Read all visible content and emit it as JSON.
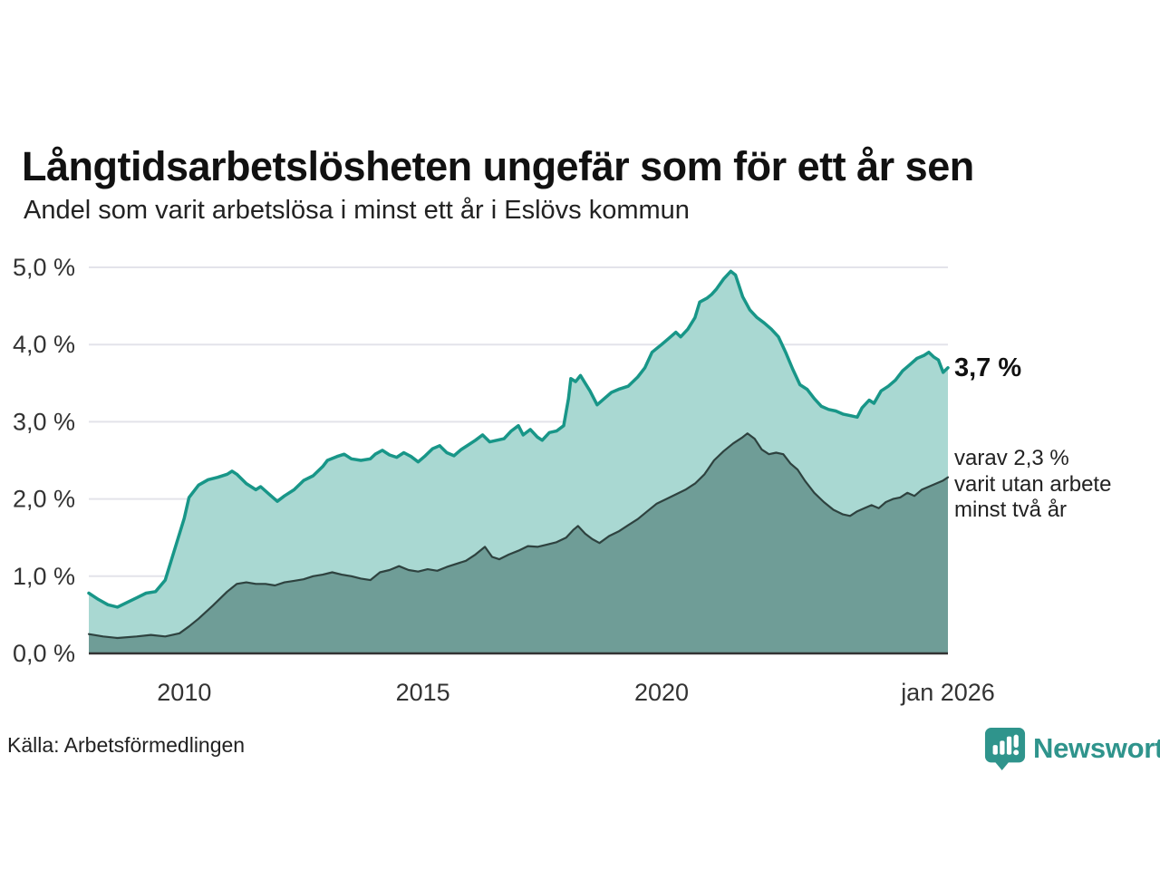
{
  "title": "Långtidsarbetslösheten ungefär som för ett år sen",
  "subtitle": "Andel som varit arbetslösa i minst ett år i Eslövs kommun",
  "source": "Källa: Arbetsförmedlingen",
  "branding": {
    "name": "Newsworthy",
    "icon": "bar-chart-speech-bubble-icon",
    "color": "#2f948c"
  },
  "annotations": {
    "latest_value": "3,7 %",
    "secondary_note": "varav 2,3 %\nvarit utan arbete\nminst två år"
  },
  "colors": {
    "accent_line": "#189688",
    "accent_fill": "#a9d8d2",
    "dark_line": "#2e423f",
    "dark_fill": "#6f9d97",
    "grid": "#e3e3ea",
    "axis": "#333333",
    "tick": "#333333",
    "text": "#111111",
    "brand": "#2f948c"
  },
  "chart_data": {
    "type": "area",
    "title": "Långtidsarbetslösheten ungefär som för ett år sen",
    "subtitle": "Andel som varit arbetslösa i minst ett år i Eslövs kommun",
    "xlabel": "",
    "ylabel": "",
    "xlim": [
      2008,
      2026
    ],
    "ylim": [
      0,
      5
    ],
    "grid": "horizontal",
    "legend": "none",
    "yticks": [
      {
        "value": 0,
        "label": "0,0 %"
      },
      {
        "value": 1,
        "label": "1,0 %"
      },
      {
        "value": 2,
        "label": "2,0 %"
      },
      {
        "value": 3,
        "label": "3,0 %"
      },
      {
        "value": 4,
        "label": "4,0 %"
      },
      {
        "value": 5,
        "label": "5,0 %"
      }
    ],
    "xticks": [
      {
        "value": 2010,
        "label": "2010"
      },
      {
        "value": 2015,
        "label": "2015"
      },
      {
        "value": 2020,
        "label": "2020"
      },
      {
        "value": 2026,
        "label": "jan 2026"
      }
    ],
    "series": [
      {
        "id": "minst-ett-ar",
        "name": "minst ett år",
        "end_value": 3.7,
        "end_label": "3,7 %",
        "color": "#189688",
        "fill": "#a9d8d2",
        "stroke_width": 3.5,
        "points": [
          [
            2008.0,
            0.78
          ],
          [
            2008.2,
            0.7
          ],
          [
            2008.4,
            0.63
          ],
          [
            2008.6,
            0.6
          ],
          [
            2008.8,
            0.66
          ],
          [
            2009.0,
            0.72
          ],
          [
            2009.2,
            0.78
          ],
          [
            2009.4,
            0.8
          ],
          [
            2009.6,
            0.95
          ],
          [
            2009.8,
            1.35
          ],
          [
            2010.0,
            1.75
          ],
          [
            2010.1,
            2.02
          ],
          [
            2010.3,
            2.18
          ],
          [
            2010.5,
            2.25
          ],
          [
            2010.7,
            2.28
          ],
          [
            2010.9,
            2.32
          ],
          [
            2011.0,
            2.36
          ],
          [
            2011.1,
            2.32
          ],
          [
            2011.3,
            2.2
          ],
          [
            2011.5,
            2.12
          ],
          [
            2011.6,
            2.16
          ],
          [
            2011.8,
            2.05
          ],
          [
            2011.95,
            1.97
          ],
          [
            2012.1,
            2.04
          ],
          [
            2012.3,
            2.12
          ],
          [
            2012.5,
            2.24
          ],
          [
            2012.7,
            2.3
          ],
          [
            2012.9,
            2.42
          ],
          [
            2013.0,
            2.5
          ],
          [
            2013.2,
            2.55
          ],
          [
            2013.35,
            2.58
          ],
          [
            2013.5,
            2.52
          ],
          [
            2013.7,
            2.5
          ],
          [
            2013.9,
            2.52
          ],
          [
            2014.0,
            2.58
          ],
          [
            2014.15,
            2.63
          ],
          [
            2014.3,
            2.57
          ],
          [
            2014.45,
            2.54
          ],
          [
            2014.6,
            2.6
          ],
          [
            2014.75,
            2.55
          ],
          [
            2014.9,
            2.48
          ],
          [
            2015.05,
            2.56
          ],
          [
            2015.2,
            2.65
          ],
          [
            2015.35,
            2.69
          ],
          [
            2015.5,
            2.6
          ],
          [
            2015.65,
            2.56
          ],
          [
            2015.8,
            2.64
          ],
          [
            2015.95,
            2.7
          ],
          [
            2016.1,
            2.76
          ],
          [
            2016.25,
            2.83
          ],
          [
            2016.4,
            2.74
          ],
          [
            2016.55,
            2.76
          ],
          [
            2016.7,
            2.78
          ],
          [
            2016.85,
            2.88
          ],
          [
            2017.0,
            2.95
          ],
          [
            2017.1,
            2.83
          ],
          [
            2017.25,
            2.9
          ],
          [
            2017.4,
            2.8
          ],
          [
            2017.5,
            2.76
          ],
          [
            2017.65,
            2.86
          ],
          [
            2017.8,
            2.88
          ],
          [
            2017.95,
            2.95
          ],
          [
            2018.05,
            3.3
          ],
          [
            2018.1,
            3.56
          ],
          [
            2018.2,
            3.52
          ],
          [
            2018.3,
            3.6
          ],
          [
            2018.4,
            3.5
          ],
          [
            2018.5,
            3.4
          ],
          [
            2018.65,
            3.22
          ],
          [
            2018.8,
            3.3
          ],
          [
            2018.95,
            3.38
          ],
          [
            2019.1,
            3.42
          ],
          [
            2019.3,
            3.46
          ],
          [
            2019.5,
            3.58
          ],
          [
            2019.65,
            3.7
          ],
          [
            2019.8,
            3.9
          ],
          [
            2020.0,
            4.0
          ],
          [
            2020.15,
            4.08
          ],
          [
            2020.3,
            4.16
          ],
          [
            2020.4,
            4.1
          ],
          [
            2020.55,
            4.2
          ],
          [
            2020.7,
            4.35
          ],
          [
            2020.8,
            4.55
          ],
          [
            2020.95,
            4.6
          ],
          [
            2021.05,
            4.65
          ],
          [
            2021.15,
            4.72
          ],
          [
            2021.3,
            4.85
          ],
          [
            2021.45,
            4.95
          ],
          [
            2021.55,
            4.9
          ],
          [
            2021.7,
            4.62
          ],
          [
            2021.85,
            4.45
          ],
          [
            2022.0,
            4.35
          ],
          [
            2022.15,
            4.28
          ],
          [
            2022.3,
            4.2
          ],
          [
            2022.45,
            4.1
          ],
          [
            2022.6,
            3.9
          ],
          [
            2022.75,
            3.68
          ],
          [
            2022.9,
            3.48
          ],
          [
            2023.05,
            3.42
          ],
          [
            2023.2,
            3.3
          ],
          [
            2023.35,
            3.2
          ],
          [
            2023.5,
            3.16
          ],
          [
            2023.65,
            3.14
          ],
          [
            2023.8,
            3.1
          ],
          [
            2023.95,
            3.08
          ],
          [
            2024.1,
            3.06
          ],
          [
            2024.2,
            3.18
          ],
          [
            2024.35,
            3.28
          ],
          [
            2024.45,
            3.24
          ],
          [
            2024.6,
            3.4
          ],
          [
            2024.75,
            3.46
          ],
          [
            2024.9,
            3.54
          ],
          [
            2025.05,
            3.66
          ],
          [
            2025.2,
            3.74
          ],
          [
            2025.35,
            3.82
          ],
          [
            2025.5,
            3.86
          ],
          [
            2025.6,
            3.9
          ],
          [
            2025.7,
            3.84
          ],
          [
            2025.8,
            3.8
          ],
          [
            2025.9,
            3.64
          ],
          [
            2026.0,
            3.7
          ]
        ]
      },
      {
        "id": "minst-tva-ar",
        "name": "minst två år",
        "end_value": 2.3,
        "end_label": "2,3 %",
        "color": "#2e423f",
        "fill": "#6f9d97",
        "stroke_width": 2.2,
        "points": [
          [
            2008.0,
            0.25
          ],
          [
            2008.3,
            0.22
          ],
          [
            2008.6,
            0.2
          ],
          [
            2009.0,
            0.22
          ],
          [
            2009.3,
            0.24
          ],
          [
            2009.6,
            0.22
          ],
          [
            2009.9,
            0.26
          ],
          [
            2010.1,
            0.35
          ],
          [
            2010.3,
            0.45
          ],
          [
            2010.6,
            0.62
          ],
          [
            2010.9,
            0.8
          ],
          [
            2011.1,
            0.9
          ],
          [
            2011.3,
            0.92
          ],
          [
            2011.5,
            0.9
          ],
          [
            2011.7,
            0.9
          ],
          [
            2011.9,
            0.88
          ],
          [
            2012.1,
            0.92
          ],
          [
            2012.3,
            0.94
          ],
          [
            2012.5,
            0.96
          ],
          [
            2012.7,
            1.0
          ],
          [
            2012.9,
            1.02
          ],
          [
            2013.1,
            1.05
          ],
          [
            2013.3,
            1.02
          ],
          [
            2013.5,
            1.0
          ],
          [
            2013.7,
            0.97
          ],
          [
            2013.9,
            0.95
          ],
          [
            2014.1,
            1.05
          ],
          [
            2014.3,
            1.08
          ],
          [
            2014.5,
            1.13
          ],
          [
            2014.7,
            1.08
          ],
          [
            2014.9,
            1.06
          ],
          [
            2015.1,
            1.09
          ],
          [
            2015.3,
            1.07
          ],
          [
            2015.5,
            1.12
          ],
          [
            2015.7,
            1.16
          ],
          [
            2015.9,
            1.2
          ],
          [
            2016.1,
            1.28
          ],
          [
            2016.3,
            1.38
          ],
          [
            2016.45,
            1.25
          ],
          [
            2016.6,
            1.22
          ],
          [
            2016.8,
            1.28
          ],
          [
            2017.0,
            1.33
          ],
          [
            2017.2,
            1.39
          ],
          [
            2017.4,
            1.38
          ],
          [
            2017.6,
            1.41
          ],
          [
            2017.8,
            1.44
          ],
          [
            2018.0,
            1.5
          ],
          [
            2018.15,
            1.6
          ],
          [
            2018.25,
            1.65
          ],
          [
            2018.4,
            1.55
          ],
          [
            2018.55,
            1.48
          ],
          [
            2018.7,
            1.43
          ],
          [
            2018.9,
            1.52
          ],
          [
            2019.1,
            1.58
          ],
          [
            2019.3,
            1.66
          ],
          [
            2019.5,
            1.74
          ],
          [
            2019.7,
            1.84
          ],
          [
            2019.9,
            1.94
          ],
          [
            2020.1,
            2.0
          ],
          [
            2020.3,
            2.06
          ],
          [
            2020.5,
            2.12
          ],
          [
            2020.7,
            2.2
          ],
          [
            2020.9,
            2.32
          ],
          [
            2021.1,
            2.5
          ],
          [
            2021.3,
            2.62
          ],
          [
            2021.5,
            2.72
          ],
          [
            2021.7,
            2.8
          ],
          [
            2021.8,
            2.85
          ],
          [
            2021.95,
            2.78
          ],
          [
            2022.1,
            2.64
          ],
          [
            2022.25,
            2.58
          ],
          [
            2022.4,
            2.6
          ],
          [
            2022.55,
            2.58
          ],
          [
            2022.7,
            2.46
          ],
          [
            2022.85,
            2.38
          ],
          [
            2023.0,
            2.24
          ],
          [
            2023.2,
            2.08
          ],
          [
            2023.4,
            1.96
          ],
          [
            2023.6,
            1.86
          ],
          [
            2023.8,
            1.8
          ],
          [
            2023.95,
            1.78
          ],
          [
            2024.1,
            1.84
          ],
          [
            2024.25,
            1.88
          ],
          [
            2024.4,
            1.92
          ],
          [
            2024.55,
            1.88
          ],
          [
            2024.7,
            1.96
          ],
          [
            2024.85,
            2.0
          ],
          [
            2025.0,
            2.02
          ],
          [
            2025.15,
            2.08
          ],
          [
            2025.3,
            2.04
          ],
          [
            2025.45,
            2.12
          ],
          [
            2025.6,
            2.16
          ],
          [
            2025.75,
            2.2
          ],
          [
            2025.9,
            2.24
          ],
          [
            2026.0,
            2.28
          ]
        ]
      }
    ]
  }
}
